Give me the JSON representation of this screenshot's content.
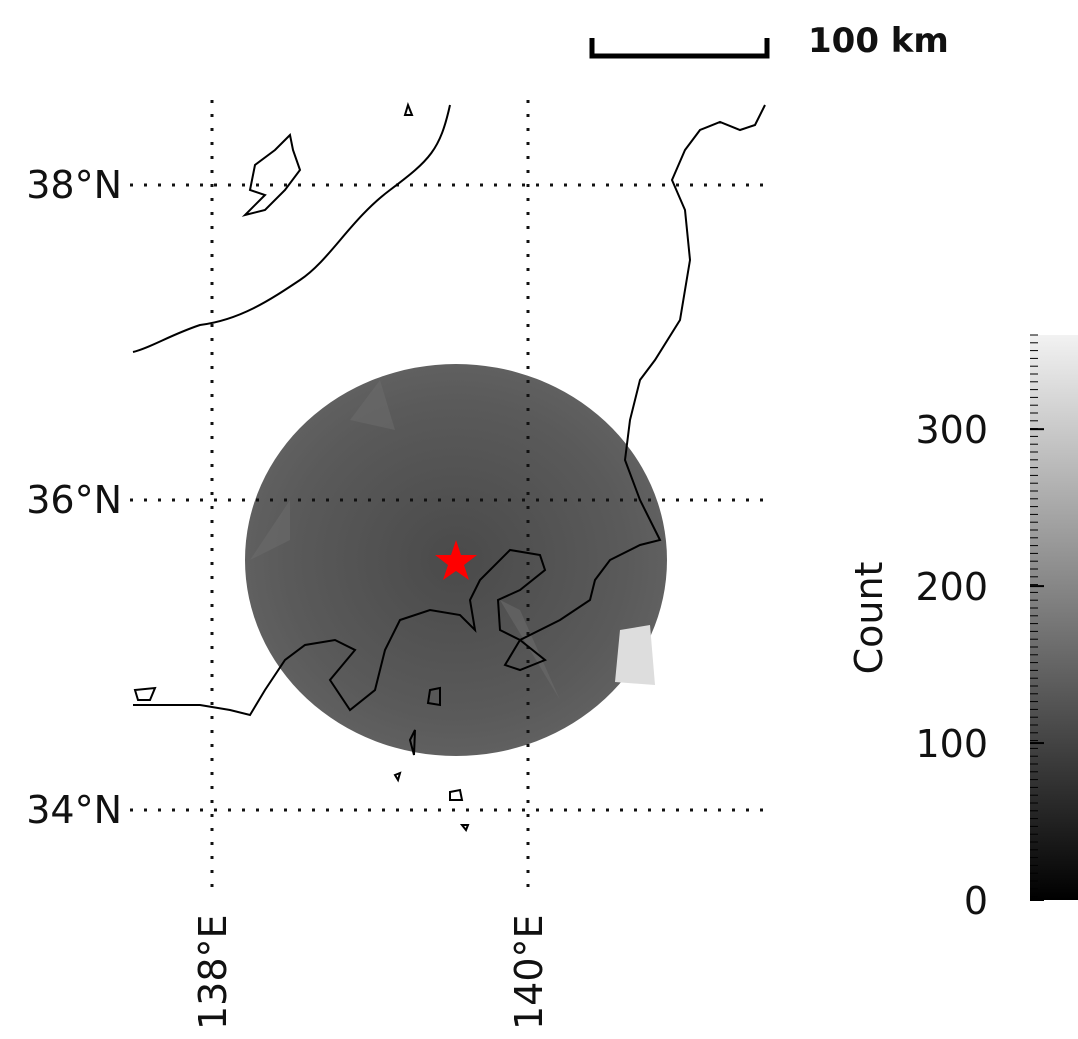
{
  "scale_bar": {
    "label": "100 km"
  },
  "map": {
    "lat_labels": [
      "38°N",
      "36°N",
      "34°N"
    ],
    "lon_labels": [
      "138°E",
      "140°E"
    ]
  },
  "colorbar": {
    "label": "Count",
    "lim": [
      0,
      360
    ],
    "ticks": [
      0,
      100,
      200,
      300
    ]
  }
}
